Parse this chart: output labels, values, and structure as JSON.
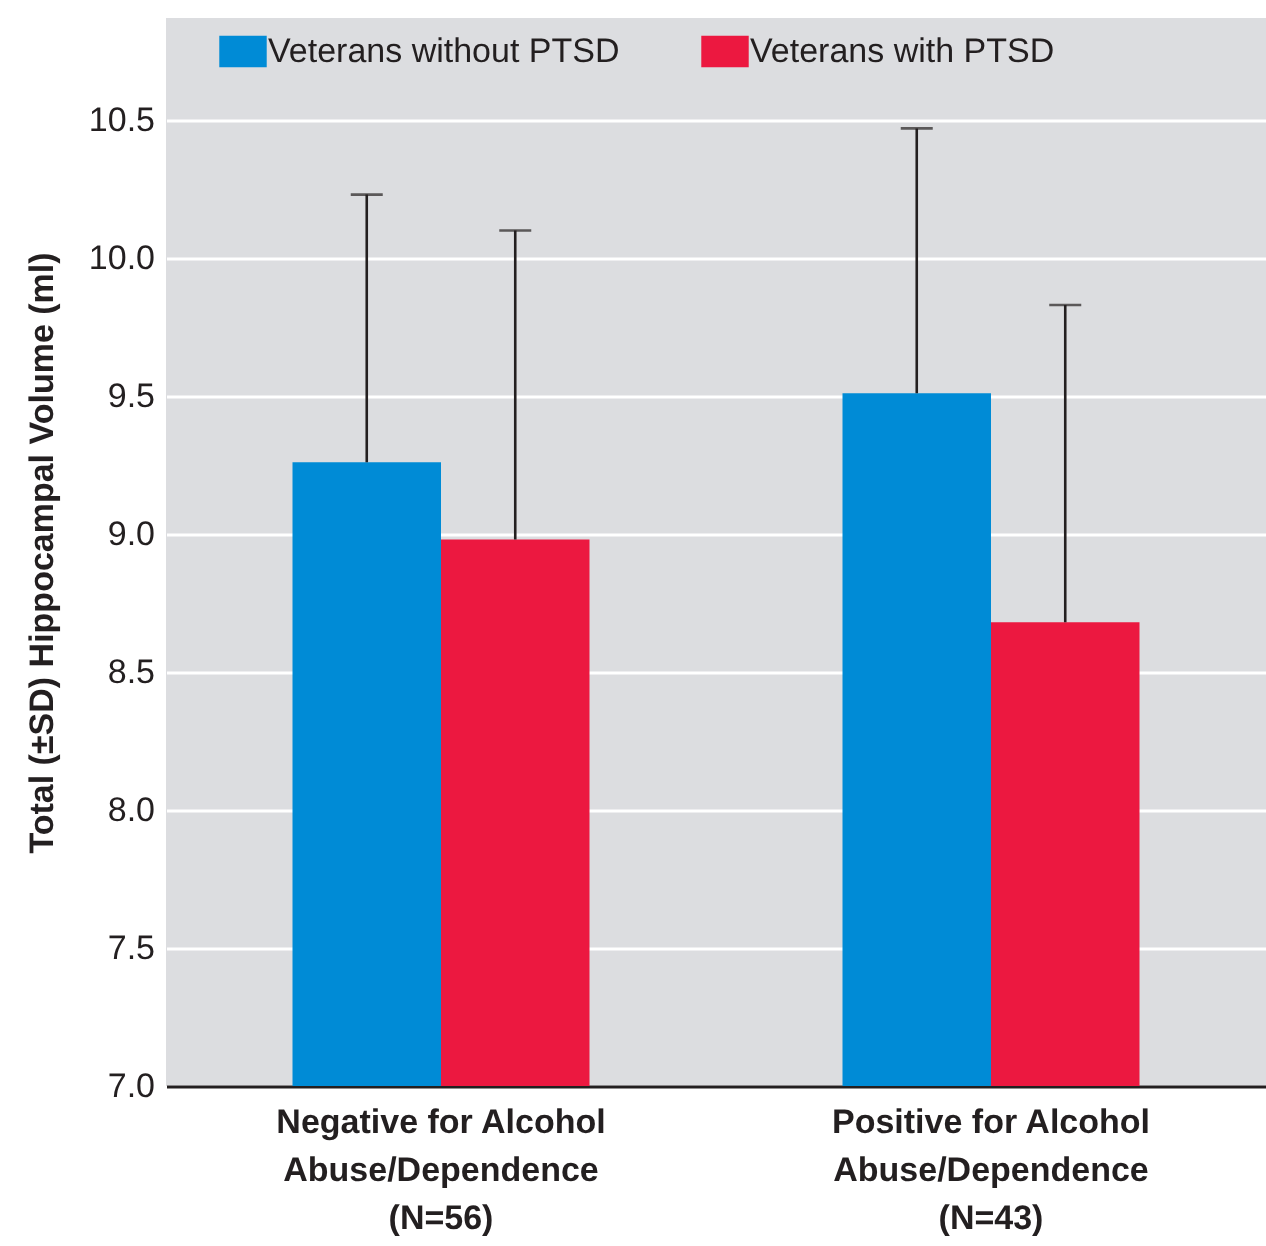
{
  "chart_data": {
    "type": "bar",
    "ylabel": "Total (±SD) Hippocampal Volume (ml)",
    "categories": [
      "Negative for Alcohol Abuse/Dependence (N=56)",
      "Positive for Alcohol Abuse/Dependence (N=43)"
    ],
    "series": [
      {
        "name": "Veterans without PTSD",
        "color": "#008bd6",
        "values": [
          9.26,
          9.51
        ],
        "errors": [
          [
            9.26,
            10.23
          ],
          [
            9.51,
            10.47
          ]
        ]
      },
      {
        "name": "Veterans with PTSD",
        "color": "#ec1840",
        "values": [
          8.98,
          8.68
        ],
        "errors": [
          [
            8.98,
            10.1
          ],
          [
            8.68,
            9.83
          ]
        ]
      }
    ],
    "ylim": [
      7.0,
      10.87
    ],
    "yticks": [
      {
        "value": 7,
        "label": "7.0"
      },
      7.5,
      {
        "value": 8,
        "label": "8.0"
      },
      8.5,
      {
        "value": 9,
        "label": "9.0"
      },
      9.5,
      {
        "value": 10,
        "label": "10.0"
      },
      10.5
    ],
    "grid": "y",
    "legend": "top"
  }
}
